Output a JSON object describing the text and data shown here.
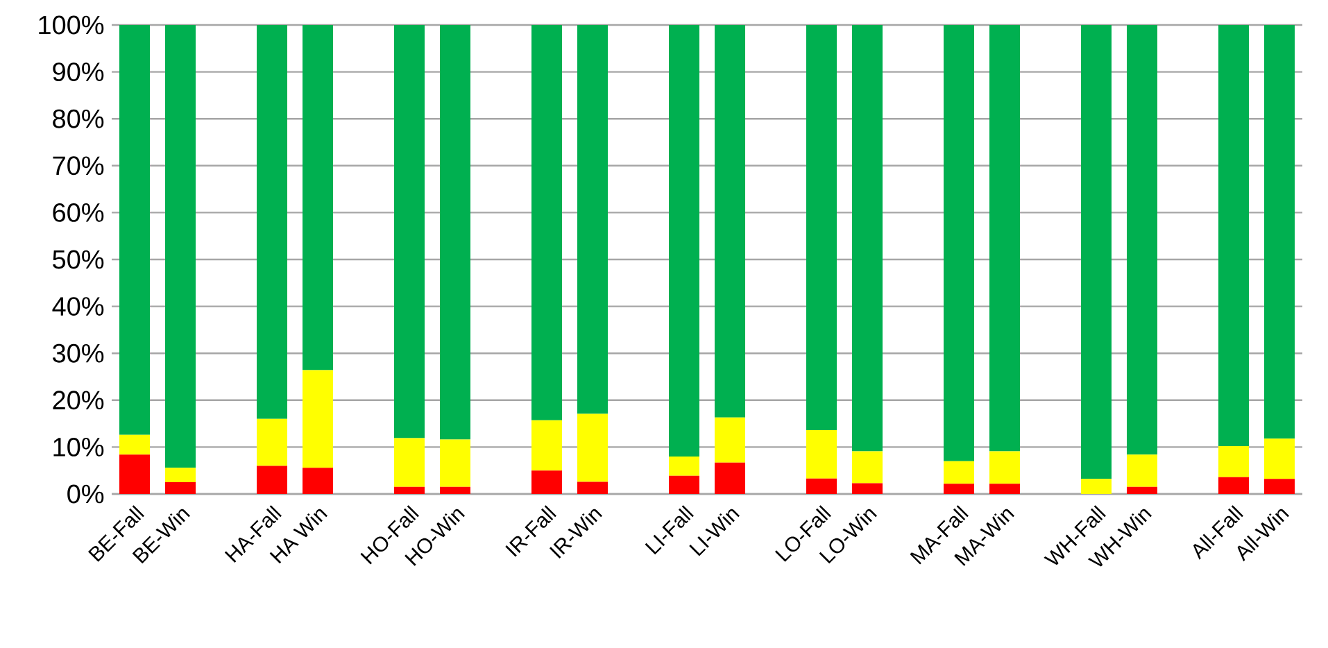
{
  "chart_data": {
    "type": "bar",
    "stacked": true,
    "categories": [
      "BE-Fall",
      "BE-Win",
      null,
      "HA-Fall",
      "HA Win",
      null,
      "HO-Fall",
      "HO-Win",
      null,
      "IR-Fall",
      "IR-Win",
      null,
      "LI-Fall",
      "LI-Win",
      null,
      "LO-Fall",
      "LO-Win",
      null,
      "MA-Fall",
      "MA-Win",
      null,
      "WH-Fall",
      "WH-Win",
      null,
      "All-Fall",
      "All-Win"
    ],
    "series": [
      {
        "color": "#ff0000",
        "values": [
          8.4,
          2.5,
          null,
          6.0,
          5.6,
          null,
          1.5,
          1.5,
          null,
          5.0,
          2.6,
          null,
          3.9,
          6.7,
          null,
          3.3,
          2.3,
          null,
          2.2,
          2.2,
          null,
          0,
          1.5,
          null,
          3.6,
          3.2
        ]
      },
      {
        "color": "#ffff00",
        "values": [
          4.2,
          3.1,
          null,
          10.0,
          20.8,
          null,
          10.4,
          10.1,
          null,
          10.7,
          14.5,
          null,
          4.1,
          9.6,
          null,
          10.3,
          6.8,
          null,
          4.8,
          6.9,
          null,
          3.2,
          6.9,
          null,
          6.6,
          8.6
        ]
      },
      {
        "color": "#00b050",
        "values": [
          87.4,
          94.4,
          null,
          84.0,
          73.6,
          null,
          88.1,
          88.4,
          null,
          84.3,
          82.9,
          null,
          92.0,
          83.7,
          null,
          86.4,
          90.9,
          null,
          93.0,
          90.9,
          null,
          96.8,
          91.6,
          null,
          89.8,
          88.2
        ]
      }
    ],
    "ylim": [
      0,
      100
    ],
    "yticks": [
      {
        "value": 0,
        "label": "0%"
      },
      {
        "value": 10,
        "label": "10%"
      },
      {
        "value": 20,
        "label": "20%"
      },
      {
        "value": 30,
        "label": "30%"
      },
      {
        "value": 40,
        "label": "40%"
      },
      {
        "value": 50,
        "label": "50%"
      },
      {
        "value": 60,
        "label": "60%"
      },
      {
        "value": 70,
        "label": "70%"
      },
      {
        "value": 80,
        "label": "80%"
      },
      {
        "value": 90,
        "label": "90%"
      },
      {
        "value": 100,
        "label": "100%"
      }
    ],
    "grid": "y"
  }
}
